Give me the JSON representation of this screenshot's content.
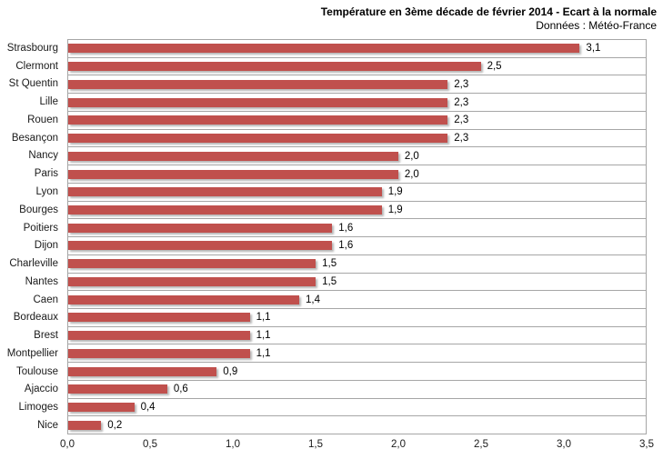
{
  "header": {
    "title": "Température en 3ème décade de février 2014 - Ecart à la normale",
    "subtitle": "Données : Météo-France"
  },
  "chart_data": {
    "type": "bar",
    "orientation": "horizontal",
    "title": "Température en 3ème décade de février 2014 - Ecart à la normale",
    "subtitle": "Données : Météo-France",
    "categories": [
      "Strasbourg",
      "Clermont",
      "St Quentin",
      "Lille",
      "Rouen",
      "Besançon",
      "Nancy",
      "Paris",
      "Lyon",
      "Bourges",
      "Poitiers",
      "Dijon",
      "Charleville",
      "Nantes",
      "Caen",
      "Bordeaux",
      "Brest",
      "Montpellier",
      "Toulouse",
      "Ajaccio",
      "Limoges",
      "Nice"
    ],
    "values": [
      3.1,
      2.5,
      2.3,
      2.3,
      2.3,
      2.3,
      2.0,
      2.0,
      1.9,
      1.9,
      1.6,
      1.6,
      1.5,
      1.5,
      1.4,
      1.1,
      1.1,
      1.1,
      0.9,
      0.6,
      0.4,
      0.2
    ],
    "value_labels": [
      "3,1",
      "2,5",
      "2,3",
      "2,3",
      "2,3",
      "2,3",
      "2,0",
      "2,0",
      "1,9",
      "1,9",
      "1,6",
      "1,6",
      "1,5",
      "1,5",
      "1,4",
      "1,1",
      "1,1",
      "1,1",
      "0,9",
      "0,6",
      "0,4",
      "0,2"
    ],
    "xlabel": "",
    "ylabel": "",
    "xlim": [
      0,
      3.5
    ],
    "x_ticks": [
      "0,0",
      "0,5",
      "1,0",
      "1,5",
      "2,0",
      "2,5",
      "3,0",
      "3,5"
    ],
    "grid": "horizontal category separators only",
    "legend": "none",
    "bar_color": "#C0504D",
    "gridline_color": "#A6A6A6",
    "background_color": "#FFFFFF"
  }
}
